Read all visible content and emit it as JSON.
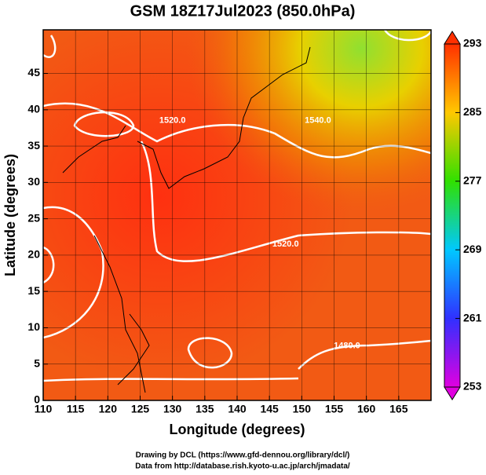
{
  "chart_data": {
    "type": "map",
    "title": "GSM 18Z17Jul2023 (850.0hPa)",
    "x_label": "Longitude (degrees)",
    "y_label": "Latitude  (degrees)",
    "xlim": [
      110,
      170
    ],
    "ylim": [
      0,
      51
    ],
    "xticks": [
      110,
      115,
      120,
      125,
      130,
      135,
      140,
      145,
      150,
      155,
      160,
      165
    ],
    "yticks": [
      0,
      5,
      10,
      15,
      20,
      25,
      30,
      35,
      40,
      45
    ],
    "grid": true,
    "colorbar_lim": [
      253,
      293
    ],
    "colorbar_ticks": [
      253,
      261,
      269,
      277,
      285,
      293
    ],
    "contour_labels": [
      {
        "text": "1520.0",
        "lon": 130,
        "lat": 38.5
      },
      {
        "text": "1540.0",
        "lon": 152.5,
        "lat": 38.5
      },
      {
        "text": "1520.0",
        "lon": 147.5,
        "lat": 21.5
      },
      {
        "text": "1480.0",
        "lon": 157,
        "lat": 7.5
      }
    ],
    "credits": [
      "Drawing by DCL (https://www.gfd-dennou.org/library/dcl/)",
      "Data from http://database.rish.kyoto-u.ac.jp/arch/jmadata/"
    ]
  }
}
